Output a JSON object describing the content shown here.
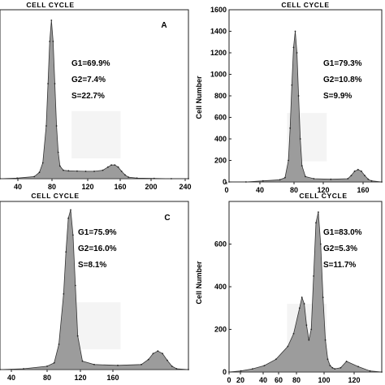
{
  "figure": {
    "panels": [
      {
        "title": "CELL CYCLE",
        "letter": "A",
        "stats": [
          "G1=69.9%",
          "G2=7.4%",
          "S=22.7%"
        ],
        "ylabel": "",
        "x_ticks": [
          "40",
          "80",
          "120",
          "160",
          "200",
          "240"
        ],
        "y_ticks": []
      },
      {
        "title": "CELL CYCLE",
        "letter": "",
        "stats": [
          "G1=79.3%",
          "G2=10.8%",
          "S=9.9%"
        ],
        "ylabel": "Cell  Number",
        "x_ticks": [
          "0",
          "40",
          "80",
          "120",
          "160"
        ],
        "y_ticks": [
          "0",
          "200",
          "400",
          "600",
          "800",
          "1000",
          "1200",
          "1400",
          "1600"
        ]
      },
      {
        "title": "CELL  CYCLE",
        "letter": "C",
        "stats": [
          "G1=75.9%",
          "G2=16.0%",
          "S=8.1%"
        ],
        "ylabel": "",
        "x_ticks": [
          "40",
          "80",
          "120",
          "160"
        ],
        "y_ticks": []
      },
      {
        "title": "CELL  CYCLE",
        "letter": "",
        "stats": [
          "G1=83.0%",
          "G2=5.3%",
          "S=11.7%"
        ],
        "ylabel": "Cell  Number",
        "x_ticks": [
          "0",
          "20",
          "40",
          "60",
          "80",
          "100",
          "120"
        ],
        "y_ticks": [
          "0",
          "200",
          "400",
          "600"
        ]
      }
    ]
  },
  "chart_data": [
    {
      "type": "area",
      "title": "CELL CYCLE",
      "panel_letter": "A",
      "xlabel": "",
      "ylabel": "",
      "xlim": [
        20,
        240
      ],
      "ylim": [
        0,
        1600
      ],
      "x_ticks": [
        40,
        80,
        120,
        160,
        200,
        240
      ],
      "series": [
        {
          "name": "",
          "x": [
            20,
            40,
            60,
            66,
            70,
            74,
            76,
            78,
            80,
            82,
            84,
            86,
            88,
            90,
            94,
            100,
            110,
            120,
            130,
            140,
            146,
            150,
            154,
            158,
            162,
            166,
            170,
            180,
            200,
            220,
            240
          ],
          "values": [
            0,
            5,
            20,
            60,
            150,
            500,
            900,
            1300,
            1500,
            1300,
            900,
            500,
            250,
            120,
            80,
            75,
            72,
            70,
            70,
            80,
            110,
            130,
            130,
            110,
            70,
            35,
            15,
            5,
            2,
            0,
            0
          ]
        }
      ],
      "annotations": [
        "G1=69.9%",
        "G2=7.4%",
        "S=22.7%"
      ]
    },
    {
      "type": "area",
      "title": "CELL CYCLE",
      "xlabel": "",
      "ylabel": "Cell  Number",
      "xlim": [
        0,
        180
      ],
      "ylim": [
        0,
        1600
      ],
      "x_ticks": [
        0,
        40,
        80,
        120,
        160
      ],
      "y_ticks": [
        0,
        200,
        400,
        600,
        800,
        1000,
        1200,
        1400,
        1600
      ],
      "series": [
        {
          "name": "",
          "x": [
            0,
            20,
            40,
            60,
            66,
            70,
            72,
            74,
            76,
            78,
            80,
            82,
            84,
            86,
            90,
            100,
            120,
            140,
            144,
            148,
            152,
            156,
            160,
            164,
            168,
            180
          ],
          "values": [
            0,
            0,
            10,
            20,
            40,
            200,
            500,
            900,
            1250,
            1400,
            1200,
            800,
            400,
            150,
            50,
            30,
            25,
            30,
            60,
            100,
            115,
            100,
            60,
            25,
            10,
            0
          ]
        }
      ],
      "annotations": [
        "G1=79.3%",
        "G2=10.8%",
        "S=9.9%"
      ]
    },
    {
      "type": "area",
      "title": "CELL  CYCLE",
      "panel_letter": "C",
      "xlabel": "",
      "ylabel": "",
      "xlim": [
        20,
        180
      ],
      "ylim": [
        0,
        1000
      ],
      "x_ticks": [
        40,
        80,
        120,
        160
      ],
      "series": [
        {
          "name": "",
          "x": [
            20,
            40,
            60,
            66,
            70,
            74,
            76,
            78,
            80,
            82,
            84,
            86,
            90,
            100,
            120,
            140,
            146,
            150,
            154,
            158,
            162,
            166,
            170,
            180
          ],
          "values": [
            0,
            5,
            20,
            40,
            150,
            450,
            700,
            900,
            950,
            800,
            500,
            200,
            50,
            30,
            25,
            30,
            60,
            95,
            110,
            95,
            55,
            20,
            5,
            0
          ]
        }
      ],
      "annotations": [
        "G1=75.9%",
        "G2=16.0%",
        "S=8.1%"
      ]
    },
    {
      "type": "area",
      "title": "CELL  CYCLE",
      "xlabel": "",
      "ylabel": "Cell  Number",
      "xlim": [
        0,
        130
      ],
      "ylim": [
        0,
        800
      ],
      "x_ticks": [
        0,
        20,
        40,
        60,
        80,
        100,
        120
      ],
      "y_ticks": [
        0,
        200,
        400,
        600
      ],
      "series": [
        {
          "name": "",
          "x": [
            0,
            10,
            20,
            30,
            40,
            50,
            55,
            60,
            62,
            64,
            66,
            68,
            70,
            72,
            74,
            76,
            78,
            80,
            82,
            84,
            86,
            88,
            90,
            95,
            100,
            110,
            120,
            130
          ],
          "values": [
            0,
            5,
            15,
            30,
            60,
            120,
            180,
            300,
            350,
            320,
            220,
            150,
            200,
            450,
            700,
            750,
            600,
            350,
            150,
            60,
            30,
            20,
            15,
            20,
            50,
            25,
            5,
            0
          ]
        }
      ],
      "annotations": [
        "G1=83.0%",
        "G2=5.3%",
        "S=11.7%"
      ]
    }
  ]
}
